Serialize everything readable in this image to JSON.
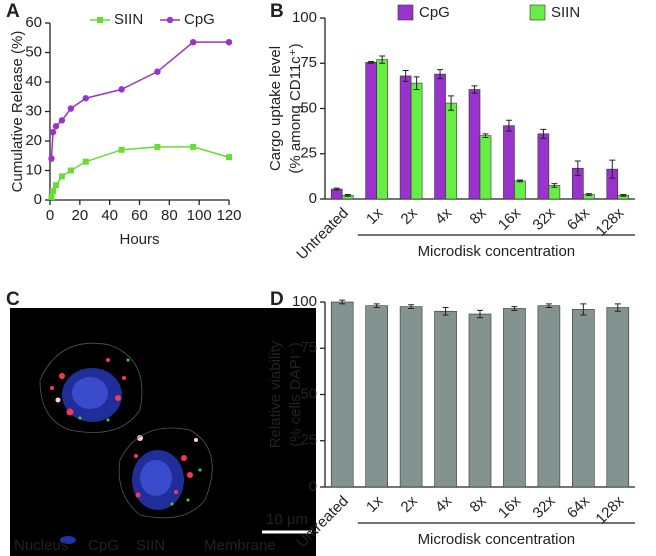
{
  "chart_data": [
    {
      "type": "line",
      "panel": "A",
      "xlabel": "Hours",
      "ylabel": "Cumulative Release (%)",
      "x": [
        1,
        2,
        4,
        8,
        14,
        24,
        48,
        72,
        96,
        120
      ],
      "series": [
        {
          "name": "SIIN",
          "color": "#66dd33",
          "marker": "square",
          "values": [
            1,
            3,
            5,
            8,
            10,
            13,
            17,
            18,
            18,
            14.5
          ]
        },
        {
          "name": "CpG",
          "color": "#9933cc",
          "marker": "circle",
          "values": [
            14,
            23,
            25,
            27,
            31,
            34.5,
            37.5,
            43.5,
            53.5,
            53.5
          ]
        }
      ],
      "xlim": [
        0,
        120
      ],
      "xticks": [
        0,
        20,
        40,
        60,
        80,
        100,
        120
      ],
      "ylim": [
        0,
        60
      ],
      "yticks": [
        0,
        10,
        20,
        30,
        40,
        50,
        60
      ]
    },
    {
      "type": "bar",
      "panel": "B",
      "ylabel": [
        "Cargo uptake level",
        "(% among CD11c⁺)"
      ],
      "xlabel": "Microdisk concentration",
      "categories": [
        "Untreated",
        "1x",
        "2x",
        "4x",
        "8x",
        "16x",
        "32x",
        "64x",
        "128x"
      ],
      "series": [
        {
          "name": "CpG",
          "color": "#9933cc",
          "values": [
            5.5,
            75.5,
            68,
            69,
            60.5,
            40.5,
            36,
            17,
            16.5
          ],
          "errors": [
            0.5,
            0.5,
            3,
            2.5,
            2,
            3,
            2.5,
            4,
            5
          ]
        },
        {
          "name": "SIIN",
          "color": "#66ee44",
          "values": [
            2,
            77,
            64,
            53,
            35,
            10,
            7.5,
            2.5,
            2
          ],
          "errors": [
            0.5,
            2,
            3.5,
            4,
            1,
            0.5,
            1,
            0.5,
            0.5
          ]
        }
      ],
      "ylim": [
        0,
        100
      ],
      "yticks": [
        0,
        25,
        50,
        75,
        100
      ]
    },
    {
      "type": "image",
      "panel": "C",
      "channels": [
        {
          "name": "Nucleus",
          "color": "#3355ff"
        },
        {
          "name": "CpG",
          "color": "#ee2233"
        },
        {
          "name": "SIIN",
          "color": "#33dd33"
        },
        {
          "name": "Membrane",
          "color": "#aaaaaa"
        }
      ],
      "scale_bar": "10 μm"
    },
    {
      "type": "bar",
      "panel": "D",
      "ylabel": [
        "Relative viability",
        "(% cells DAPI⁻)"
      ],
      "xlabel": "Microdisk concentration",
      "categories": [
        "Untreated",
        "1x",
        "2x",
        "4x",
        "8x",
        "16x",
        "32x",
        "64x",
        "128x"
      ],
      "series": [
        {
          "color": "#839490",
          "values": [
            100,
            98,
            97.5,
            95,
            93.5,
            96.5,
            98,
            96,
            97
          ],
          "errors": [
            1,
            1,
            1,
            2,
            2,
            1,
            1,
            3,
            2
          ]
        }
      ],
      "ylim": [
        0,
        100
      ],
      "yticks": [
        0,
        25,
        50,
        75,
        100
      ]
    }
  ]
}
